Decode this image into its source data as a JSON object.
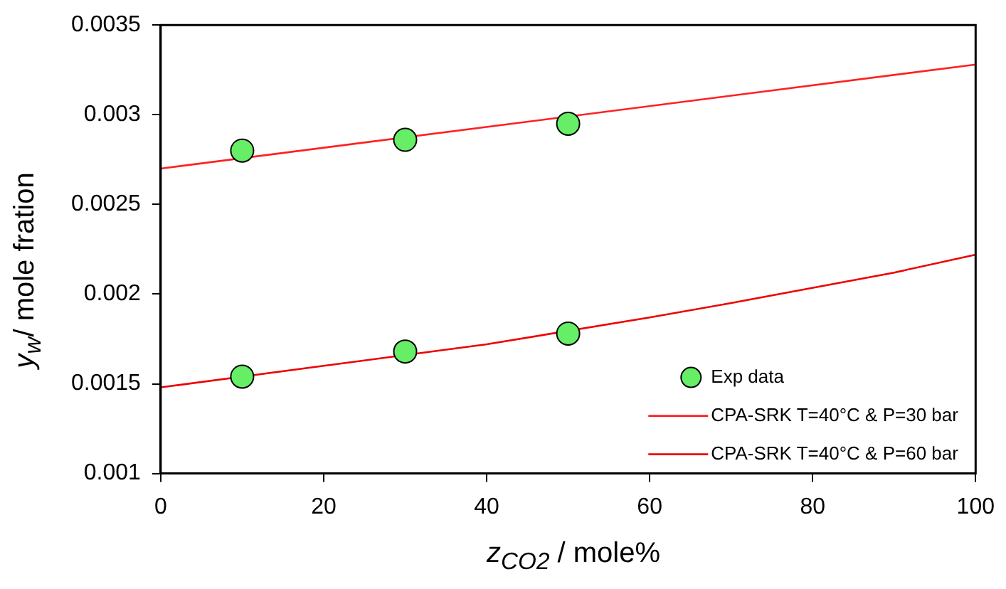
{
  "chart_data": {
    "type": "scatter",
    "xlabel": "z$_{CO2}$ / mole%",
    "ylabel": "y$_{w}$/ mole fration",
    "xlim": [
      0,
      100
    ],
    "xticks": [
      0,
      20,
      40,
      60,
      80,
      100
    ],
    "ylim": [
      0.001,
      0.0035
    ],
    "yticks": [
      0.001,
      0.0015,
      0.002,
      0.0025,
      0.003,
      0.0035
    ],
    "grid": false,
    "legend": "bottom right",
    "marker": "circle",
    "series": [
      {
        "name": "Exp data",
        "color": "#66ee66",
        "x": [
          10,
          30,
          50,
          10,
          30,
          50
        ],
        "values": [
          0.0028,
          0.00286,
          0.00295,
          0.00154,
          0.00168,
          0.00178
        ]
      },
      {
        "name": "CPA-SRK T=40°C & P=30 bar",
        "type": "line",
        "color": "#ff2020",
        "line_style": "solid",
        "marker": "none",
        "x": [
          0,
          100
        ],
        "values": [
          0.0027,
          0.00328
        ]
      },
      {
        "name": "CPA-SRK T=40°C & P=60 bar",
        "type": "line",
        "color": "#ee0000",
        "line_style": "solid",
        "marker": "none",
        "x": [
          0,
          20,
          40,
          60,
          70,
          90,
          100
        ],
        "values": [
          0.00148,
          0.0016,
          0.00172,
          0.00187,
          0.00195,
          0.00212,
          0.00222
        ]
      }
    ]
  }
}
